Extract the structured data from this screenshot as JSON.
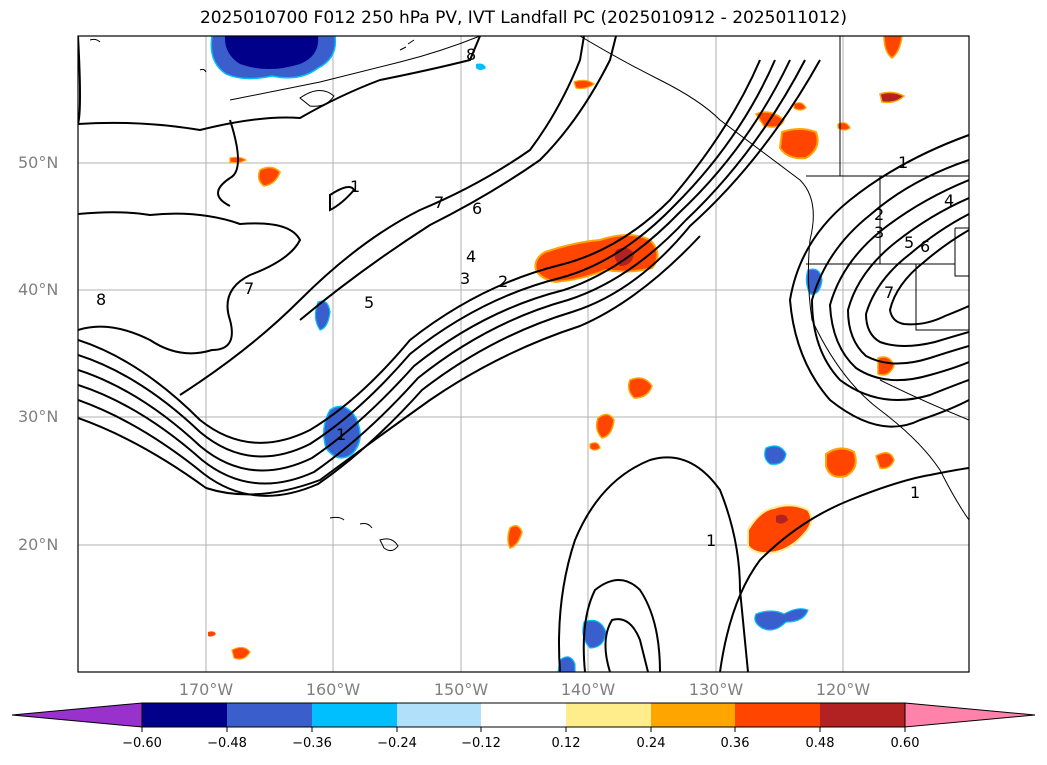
{
  "title": "2025010700 F012 250 hPa PV, IVT Landfall PC (2025010912 - 2025011012)",
  "map": {
    "lon_labels": [
      "170°W",
      "160°W",
      "150°W",
      "140°W",
      "130°W",
      "120°W"
    ],
    "lat_labels": [
      "50°N",
      "40°N",
      "30°N",
      "20°N"
    ],
    "contour_labels": [
      "8",
      "7",
      "7",
      "6",
      "5",
      "4",
      "3",
      "2",
      "1",
      "1",
      "1",
      "8",
      "7",
      "6",
      "5",
      "4",
      "3",
      "2",
      "1",
      "1"
    ]
  },
  "colorbar": {
    "ticks": [
      "−0.60",
      "−0.48",
      "−0.36",
      "−0.24",
      "−0.12",
      "0.12",
      "0.24",
      "0.36",
      "0.48",
      "0.60"
    ],
    "colors": [
      "#9932cc",
      "#00008b",
      "#3a5fcd",
      "#00bfff",
      "#b0e0fa",
      "#ffffff",
      "#ffec8b",
      "#ffa500",
      "#ff4500",
      "#b22222",
      "#ff82ab"
    ]
  }
}
